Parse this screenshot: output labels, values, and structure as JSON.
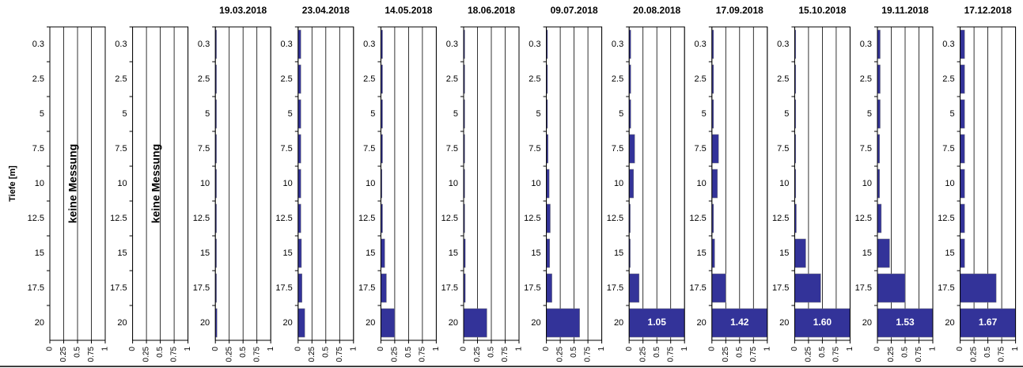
{
  "chart_data": {
    "type": "bar",
    "orientation": "horizontal",
    "ylabel": "Tiefe [m]",
    "categories": [
      "0.3",
      "2.5",
      "5",
      "7.5",
      "10",
      "12.5",
      "15",
      "17.5",
      "20"
    ],
    "xlim": [
      0,
      1
    ],
    "xticks": [
      0,
      0.25,
      0.5,
      0.75,
      1
    ],
    "color": "#333399",
    "grid": true,
    "panels": [
      {
        "annotation": "keine Messung"
      },
      {
        "annotation": "keine Messung"
      },
      {
        "title": "19.03.2018",
        "values": [
          0.02,
          0.02,
          0.02,
          0.02,
          0.02,
          0.02,
          0.02,
          0.02,
          0.03
        ]
      },
      {
        "title": "23.04.2018",
        "values": [
          0.05,
          0.05,
          0.05,
          0.05,
          0.05,
          0.05,
          0.06,
          0.07,
          0.12
        ]
      },
      {
        "title": "14.05.2018",
        "values": [
          0.03,
          0.03,
          0.03,
          0.03,
          0.02,
          0.03,
          0.07,
          0.1,
          0.25
        ]
      },
      {
        "title": "18.06.2018",
        "values": [
          0.02,
          0.02,
          0.02,
          0.02,
          0.02,
          0.02,
          0.03,
          0.03,
          0.42
        ]
      },
      {
        "title": "09.07.2018",
        "values": [
          0.02,
          0.02,
          0.02,
          0.03,
          0.05,
          0.07,
          0.06,
          0.1,
          0.6
        ]
      },
      {
        "title": "20.08.2018",
        "values": [
          0.03,
          0.03,
          0.03,
          0.1,
          0.08,
          0.02,
          0.02,
          0.18,
          1.05
        ],
        "value_labels": [
          null,
          null,
          null,
          null,
          null,
          null,
          null,
          null,
          "1.05"
        ]
      },
      {
        "title": "17.09.2018",
        "values": [
          0.03,
          0.03,
          0.03,
          0.12,
          0.1,
          0.03,
          0.05,
          0.25,
          1.42
        ],
        "value_labels": [
          null,
          null,
          null,
          null,
          null,
          null,
          null,
          null,
          "1.42"
        ]
      },
      {
        "title": "15.10.2018",
        "values": [
          0.02,
          0.02,
          0.02,
          0.02,
          0.02,
          0.03,
          0.2,
          0.47,
          1.6
        ],
        "value_labels": [
          null,
          null,
          null,
          null,
          null,
          null,
          null,
          null,
          "1.60"
        ]
      },
      {
        "title": "19.11.2018",
        "values": [
          0.05,
          0.05,
          0.05,
          0.04,
          0.04,
          0.07,
          0.22,
          0.5,
          1.53
        ],
        "value_labels": [
          null,
          null,
          null,
          null,
          null,
          null,
          null,
          null,
          "1.53"
        ]
      },
      {
        "title": "17.12.2018",
        "values": [
          0.08,
          0.08,
          0.08,
          0.08,
          0.08,
          0.08,
          0.08,
          0.65,
          1.67
        ],
        "value_labels": [
          null,
          null,
          null,
          null,
          null,
          null,
          null,
          null,
          "1.67"
        ]
      }
    ]
  }
}
